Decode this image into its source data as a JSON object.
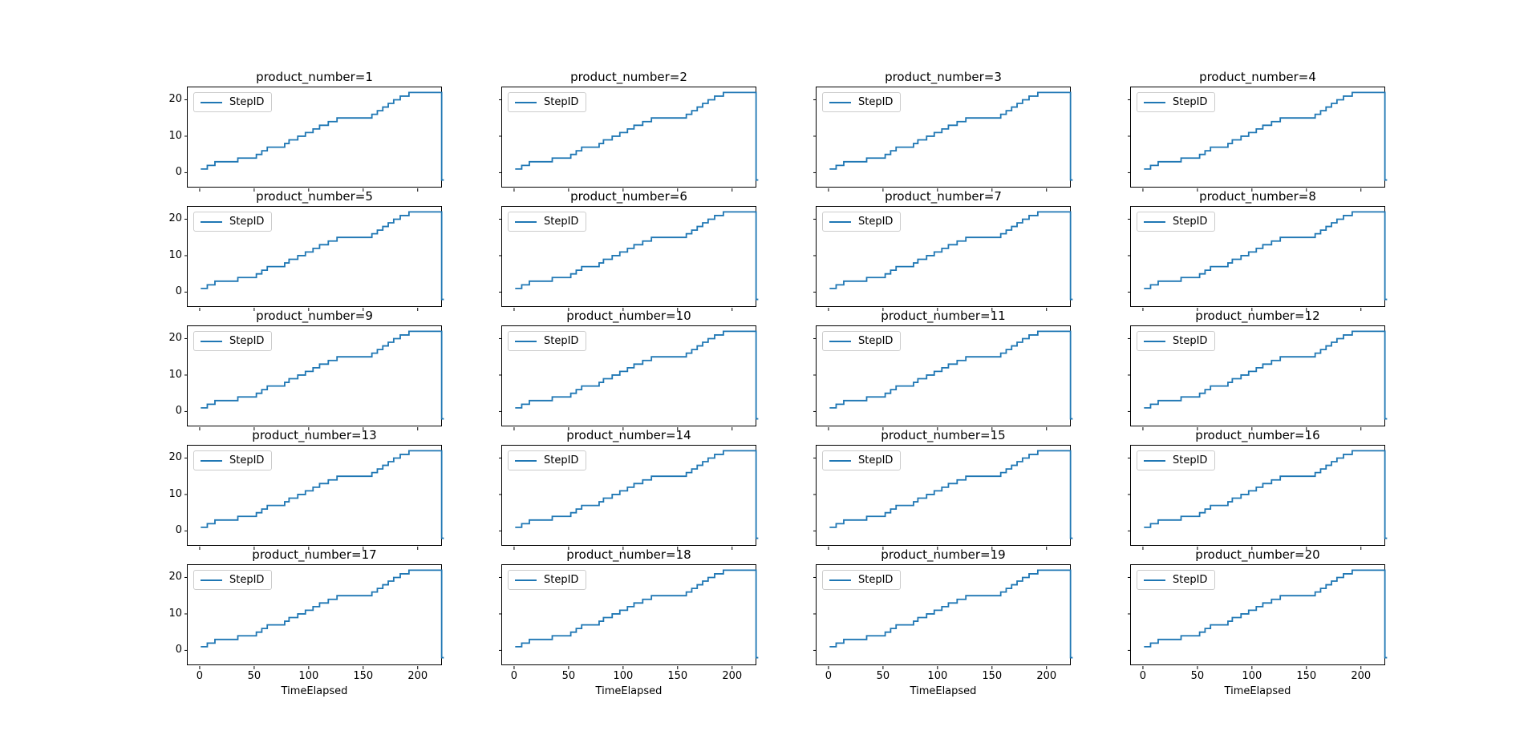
{
  "figure": {
    "background": "#ffffff",
    "grid_rows": 5,
    "grid_cols": 4
  },
  "chart_data": {
    "type": "line",
    "line_style": "step-post",
    "line_color": "#1f77b4",
    "subplot_titles": [
      "product_number=1",
      "product_number=2",
      "product_number=3",
      "product_number=4",
      "product_number=5",
      "product_number=6",
      "product_number=7",
      "product_number=8",
      "product_number=9",
      "product_number=10",
      "product_number=11",
      "product_number=12",
      "product_number=13",
      "product_number=14",
      "product_number=15",
      "product_number=16",
      "product_number=17",
      "product_number=18",
      "product_number=19",
      "product_number=20"
    ],
    "series_name": "StepID",
    "legend": {
      "label": "StepID",
      "position": "upper-left"
    },
    "xlabel": "TimeElapsed",
    "xticks": [
      0,
      50,
      100,
      150,
      200
    ],
    "yticks": [
      0,
      10,
      20
    ],
    "xlim": [
      -11,
      223
    ],
    "ylim": [
      -4.3,
      23.4
    ],
    "series_x": [
      1,
      7,
      14,
      35,
      52,
      57,
      62,
      78,
      82,
      90,
      97,
      104,
      110,
      118,
      126,
      158,
      163,
      168,
      173,
      178,
      184,
      192,
      221,
      222,
      224
    ],
    "series_y": [
      1,
      2,
      3,
      4,
      5,
      6,
      7,
      8,
      9,
      10,
      11,
      12,
      13,
      14,
      15,
      16,
      17,
      18,
      19,
      20,
      21,
      22,
      22,
      -2,
      -2
    ]
  }
}
